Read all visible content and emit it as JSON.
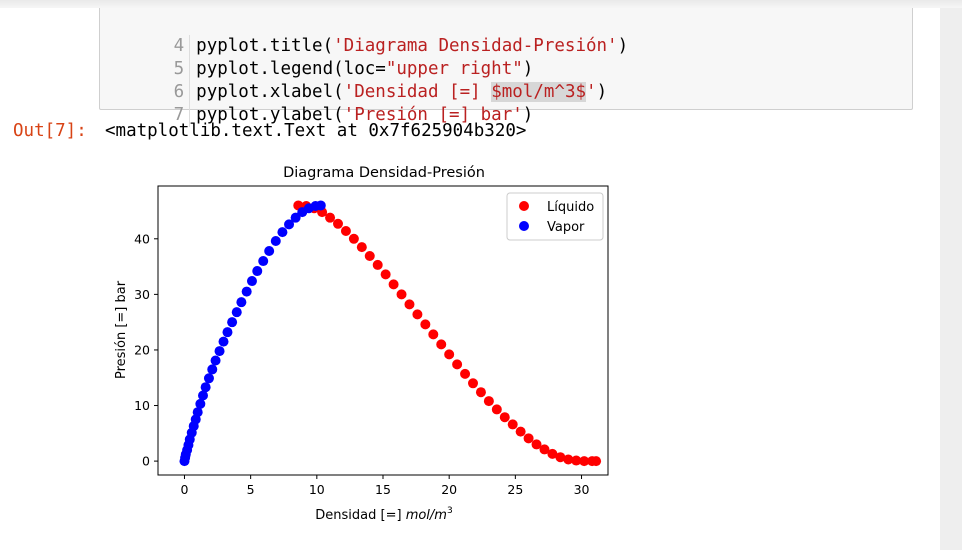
{
  "code_cell": {
    "lines": [
      {
        "num": "4",
        "pre": "pyplot.title(",
        "str": "'Diagrama Densidad-Presión'",
        "post": ")"
      },
      {
        "num": "5",
        "pre": "pyplot.legend(loc=",
        "str": "\"upper right\"",
        "post": ")"
      },
      {
        "num": "6",
        "pre": "pyplot.xlabel(",
        "str": "'Densidad [=] ",
        "hl": "$mol/m^3$",
        "str2": "'",
        "post": ")"
      },
      {
        "num": "7",
        "pre": "pyplot.ylabel(",
        "str": "'Presión [=] bar'",
        "post": ")"
      }
    ]
  },
  "output": {
    "prompt": "Out[7]:",
    "text": "<matplotlib.text.Text at 0x7f625904b320>"
  },
  "colors": {
    "liquid": "#ff0000",
    "vapor": "#0000ff",
    "code_string": "#ba2121",
    "prompt": "#d84315"
  },
  "chart_data": {
    "type": "scatter",
    "title": "Diagrama Densidad-Presión",
    "xlabel_text": "Densidad [=] ",
    "xlabel_math": "mol/m",
    "xlabel_sup": "3",
    "ylabel": "Presión [=] bar",
    "xlim": [
      -2,
      32
    ],
    "ylim": [
      -2.5,
      49.5
    ],
    "xticks": [
      0,
      5,
      10,
      15,
      20,
      25,
      30
    ],
    "yticks": [
      0,
      10,
      20,
      30,
      40
    ],
    "legend_position": "upper right",
    "series": [
      {
        "name": "Líquido",
        "color": "#ff0000",
        "points": [
          [
            8.6,
            46
          ],
          [
            9.2,
            45.9
          ],
          [
            9.8,
            45.5
          ],
          [
            10.4,
            44.8
          ],
          [
            11.0,
            43.8
          ],
          [
            11.6,
            42.7
          ],
          [
            12.2,
            41.4
          ],
          [
            12.8,
            40.0
          ],
          [
            13.4,
            38.5
          ],
          [
            14.0,
            36.9
          ],
          [
            14.6,
            35.3
          ],
          [
            15.2,
            33.6
          ],
          [
            15.8,
            31.8
          ],
          [
            16.4,
            30.0
          ],
          [
            17.0,
            28.2
          ],
          [
            17.6,
            26.4
          ],
          [
            18.2,
            24.6
          ],
          [
            18.8,
            22.8
          ],
          [
            19.4,
            21.0
          ],
          [
            20.0,
            19.2
          ],
          [
            20.6,
            17.4
          ],
          [
            21.2,
            15.7
          ],
          [
            21.8,
            14.0
          ],
          [
            22.4,
            12.4
          ],
          [
            23.0,
            10.8
          ],
          [
            23.6,
            9.3
          ],
          [
            24.2,
            7.9
          ],
          [
            24.8,
            6.6
          ],
          [
            25.4,
            5.3
          ],
          [
            26.0,
            4.1
          ],
          [
            26.6,
            3.0
          ],
          [
            27.2,
            2.1
          ],
          [
            27.8,
            1.3
          ],
          [
            28.4,
            0.7
          ],
          [
            29.0,
            0.3
          ],
          [
            29.6,
            0.1
          ],
          [
            30.2,
            0.0
          ],
          [
            30.8,
            0.0
          ],
          [
            31.1,
            0.0
          ]
        ]
      },
      {
        "name": "Vapor",
        "color": "#0000ff",
        "points": [
          [
            0.0,
            0.0
          ],
          [
            0.05,
            0.6
          ],
          [
            0.1,
            1.2
          ],
          [
            0.2,
            2.0
          ],
          [
            0.3,
            2.9
          ],
          [
            0.4,
            3.9
          ],
          [
            0.55,
            5.1
          ],
          [
            0.7,
            6.3
          ],
          [
            0.85,
            7.5
          ],
          [
            1.0,
            8.8
          ],
          [
            1.2,
            10.3
          ],
          [
            1.4,
            11.8
          ],
          [
            1.6,
            13.3
          ],
          [
            1.85,
            14.9
          ],
          [
            2.1,
            16.5
          ],
          [
            2.35,
            18.1
          ],
          [
            2.65,
            19.8
          ],
          [
            2.95,
            21.5
          ],
          [
            3.25,
            23.2
          ],
          [
            3.6,
            25.0
          ],
          [
            3.95,
            26.8
          ],
          [
            4.3,
            28.6
          ],
          [
            4.7,
            30.5
          ],
          [
            5.1,
            32.4
          ],
          [
            5.5,
            34.2
          ],
          [
            5.95,
            36.0
          ],
          [
            6.4,
            37.8
          ],
          [
            6.9,
            39.6
          ],
          [
            7.4,
            41.2
          ],
          [
            7.9,
            42.6
          ],
          [
            8.4,
            43.8
          ],
          [
            8.9,
            44.8
          ],
          [
            9.4,
            45.5
          ],
          [
            9.9,
            45.9
          ],
          [
            10.3,
            46.0
          ]
        ]
      }
    ]
  }
}
